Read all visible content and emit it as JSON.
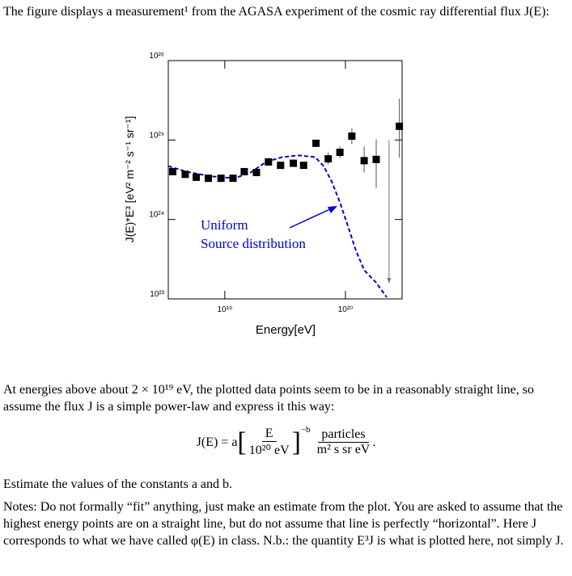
{
  "intro": "The figure displays a measurement¹ from the AGASA experiment of the cosmic ray differential flux J(E):",
  "chart_data": {
    "type": "scatter",
    "x_label": "Energy[eV]",
    "y_label": "J(E)*E³ [eV² m⁻² s⁻¹ sr⁻¹]",
    "log_x": true,
    "log_y": true,
    "xlim": [
      3.4e+18,
      2.95e+20
    ],
    "ylim": [
      1e+23,
      1e+26
    ],
    "xticks": [
      {
        "value": 1e+19,
        "label": "10¹⁹"
      },
      {
        "value": 1e+20,
        "label": "10²⁰"
      }
    ],
    "yticks": [
      {
        "value": 1e+23,
        "label": "10²³"
      },
      {
        "value": 1e+24,
        "label": "10²⁴"
      },
      {
        "value": 1e+25,
        "label": "10²⁵"
      },
      {
        "value": 1e+26,
        "label": "10²⁶"
      }
    ],
    "color": "#000000",
    "x": [
      3.7e+18,
      4.7e+18,
      5.8e+18,
      7.3e+18,
      9.3e+18,
      1.17e+19,
      1.45e+19,
      1.83e+19,
      2.3e+19,
      2.9e+19,
      3.7e+19,
      4.5e+19,
      5.7e+19,
      7.2e+19,
      9e+19,
      1.13e+20,
      1.43e+20,
      1.8e+20,
      2.8e+20
    ],
    "values": [
      4e+24,
      3.7e+24,
      3.4e+24,
      3.3e+24,
      3.3e+24,
      3.3e+24,
      4e+24,
      3.9e+24,
      5.3e+24,
      4.8e+24,
      5.1e+24,
      4.8e+24,
      9.1e+24,
      5.8e+24,
      7e+24,
      1.12e+25,
      5.5e+24,
      5.7e+24,
      1.49e+25
    ],
    "y_low": [
      null,
      null,
      null,
      null,
      null,
      null,
      null,
      null,
      null,
      null,
      null,
      null,
      8.3e+24,
      4.9e+24,
      5.9e+24,
      8.9e+24,
      3.9e+24,
      2.5e+24,
      6e+24
    ],
    "y_high": [
      null,
      null,
      null,
      null,
      null,
      null,
      null,
      null,
      null,
      null,
      null,
      null,
      1e+25,
      7e+24,
      8.3e+24,
      1.4e+25,
      8.3e+24,
      1.02e+25,
      3.3e+25
    ],
    "upper_limit": {
      "x": 2.3e+20,
      "value": 1e+25
    },
    "model_curve": {
      "color": "#0000cc",
      "style": "dashed",
      "x": [
        3.4e+18,
        4.8e+18,
        7.6e+18,
        1.2e+19,
        1.64e+19,
        2.2e+19,
        3e+19,
        4.1e+19,
        5.6e+19,
        6.6e+19,
        7.7e+19,
        9e+19,
        1.05e+20,
        1.22e+20,
        1.43e+20,
        1.8e+20,
        2.2e+20
      ],
      "values": [
        4.7e+24,
        4e+24,
        3.5e+24,
        3.3e+24,
        3.9e+24,
        5.3e+24,
        6.1e+24,
        6.4e+24,
        6.1e+24,
        4.7e+24,
        3e+24,
        1.65e+24,
        8.2e+23,
        4.1e+23,
        2.3e+23,
        1.6e+23,
        1.05e+23
      ]
    },
    "annotation_lines": [
      "Uniform",
      "Source distribution"
    ]
  },
  "paragraph": "At energies above about 2 × 10¹⁹ eV, the plotted data points seem to be in a reasonably straight line, so assume the flux J is a simple power-law and express it this way:",
  "equation": {
    "lhs": "J(E) = a",
    "numerator": "E",
    "denominator": "10²⁰ eV",
    "exponent": "−b",
    "unit_numerator": "particles",
    "unit_denominator": "m² s sr eV",
    "end": "."
  },
  "task": "Estimate the values of the constants a and b.",
  "notes": "Notes: Do not formally “fit” anything, just make an estimate from the plot. You are asked to assume that the highest energy points are on a straight line, but do not assume that line is perfectly “horizontal”. Here J corresponds to what we have called φ(E) in class. N.b.: the quantity E³J is what is plotted here, not simply J."
}
